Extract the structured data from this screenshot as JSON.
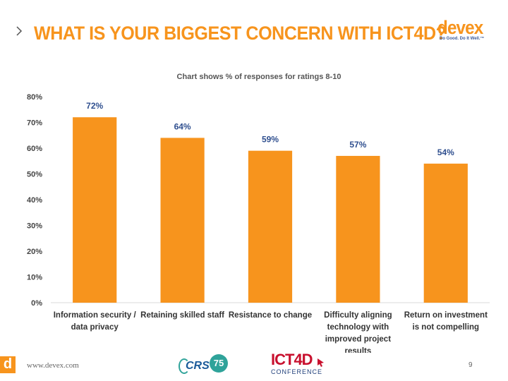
{
  "slide": {
    "title": "WHAT IS YOUR BIGGEST CONCERN WITH ICT4D?",
    "page_number": "9"
  },
  "brand": {
    "logo_word": "devex",
    "logo_tagline": "Do Good. Do It Well.™",
    "accent_color": "#f7941d",
    "label_color": "#2f4f8f"
  },
  "chart_data": {
    "type": "bar",
    "title": "Chart shows % of responses for ratings 8-10",
    "xlabel": "",
    "ylabel": "",
    "ylim": [
      0,
      80
    ],
    "yticks": [
      0,
      10,
      20,
      30,
      40,
      50,
      60,
      70,
      80
    ],
    "ytick_labels": [
      "0%",
      "10%",
      "20%",
      "30%",
      "40%",
      "50%",
      "60%",
      "70%",
      "80%"
    ],
    "grid": false,
    "categories": [
      [
        "Information security /",
        "data privacy"
      ],
      [
        "Retaining skilled staff"
      ],
      [
        "Resistance to change"
      ],
      [
        "Difficulty aligning",
        "technology with",
        "improved project",
        "results"
      ],
      [
        "Return on investment",
        "is not compelling"
      ]
    ],
    "values": [
      72,
      64,
      59,
      57,
      54
    ],
    "value_labels": [
      "72%",
      "64%",
      "59%",
      "57%",
      "54%"
    ]
  },
  "footer": {
    "badge": "d",
    "url": "www.devex.com",
    "crs_logo_text": "CRS",
    "crs_logo_number": "75",
    "ict4d_logo_word": "ICT4D",
    "ict4d_logo_sub": "CONFERENCE"
  }
}
